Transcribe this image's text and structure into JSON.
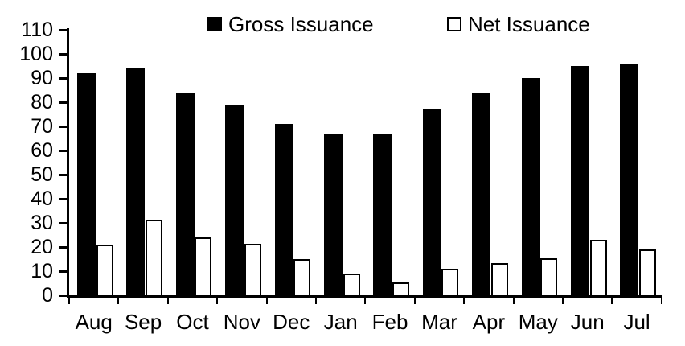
{
  "chart_data": {
    "type": "bar",
    "title": "",
    "xlabel": "",
    "ylabel": "",
    "categories": [
      "Aug",
      "Sep",
      "Oct",
      "Nov",
      "Dec",
      "Jan",
      "Feb",
      "Mar",
      "Apr",
      "May",
      "Jun",
      "Jul"
    ],
    "series": [
      {
        "name": "Gross Issuance",
        "fill": "#000000",
        "stroke": "#000000",
        "values": [
          92,
          94,
          84,
          79,
          71,
          67,
          67,
          77,
          84,
          90,
          95,
          96
        ]
      },
      {
        "name": "Net Issuance",
        "fill": "#ffffff",
        "stroke": "#000000",
        "values": [
          21,
          31.5,
          24,
          21.5,
          15,
          9,
          5.5,
          11,
          13.5,
          15.5,
          23,
          19
        ]
      }
    ],
    "ylim": [
      0,
      110
    ],
    "y_tick_step": 10,
    "y_tick_labels": [
      "0",
      "10",
      "20",
      "30",
      "40",
      "50",
      "60",
      "70",
      "80",
      "90",
      "100",
      "110"
    ],
    "grid": false,
    "legend_position": "top",
    "background": "#ffffff",
    "axis_color": "#000000",
    "text_color": "#000000"
  }
}
